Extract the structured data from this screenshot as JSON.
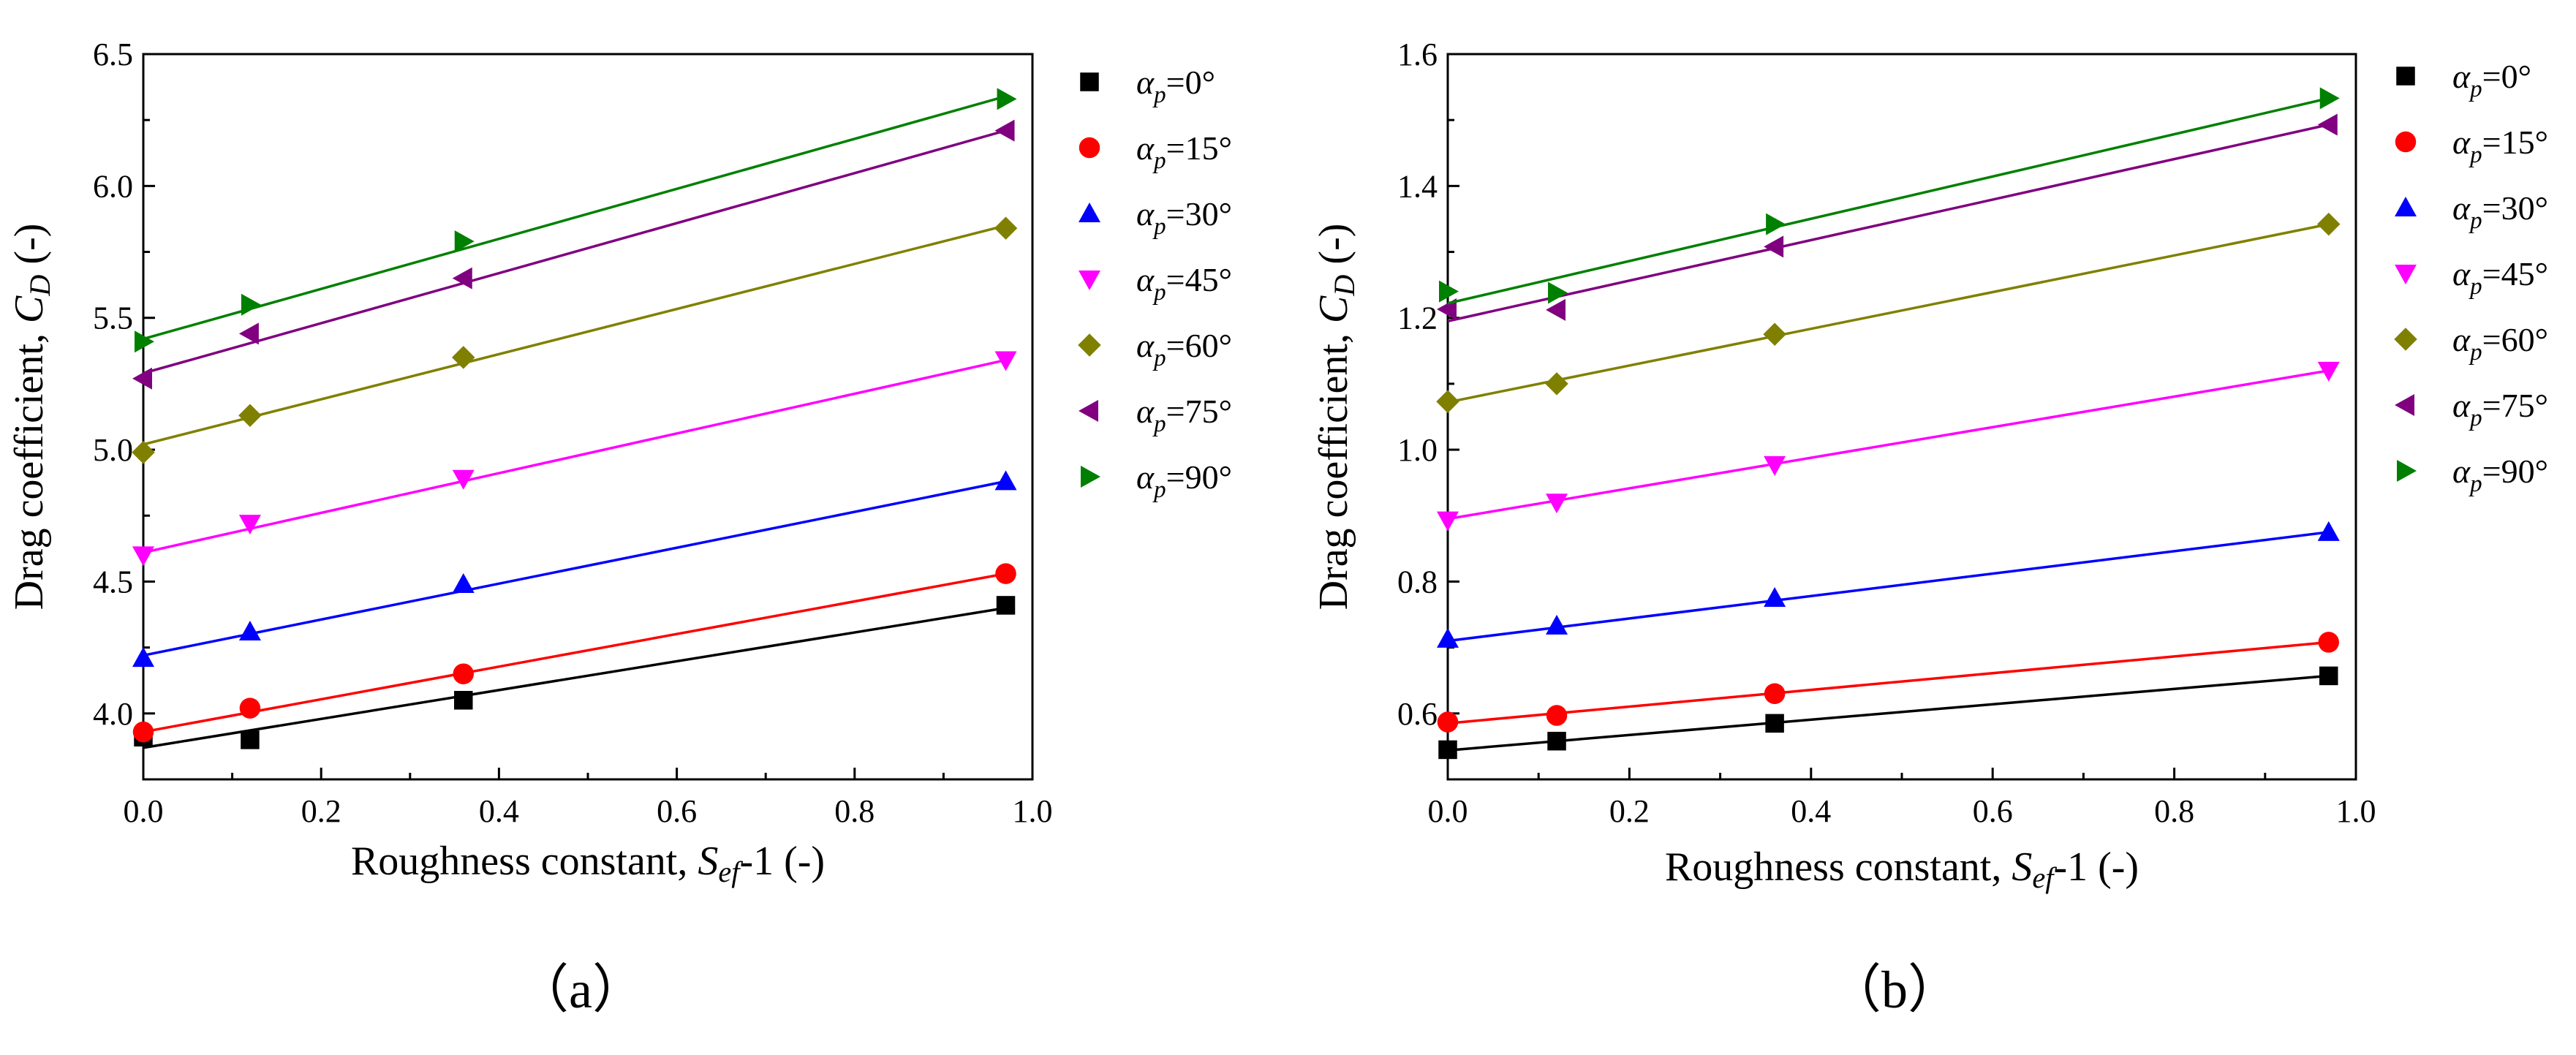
{
  "chart_data": [
    {
      "type": "scatter",
      "panel_label": "（a）",
      "xlabel_prefix": "Roughness constant, ",
      "xlabel_var": "S",
      "xlabel_sub": "ef",
      "xlabel_suffix": "-1 (-)",
      "ylabel_prefix": "Drag coefficient, ",
      "ylabel_var": "C",
      "ylabel_sub": "D",
      "ylabel_suffix": " (-)",
      "xlim": [
        0,
        1.0
      ],
      "ylim": [
        3.75,
        6.5
      ],
      "xticks": [
        0.0,
        0.2,
        0.4,
        0.6,
        0.8,
        1.0
      ],
      "xtick_labels": [
        "0.0",
        "0.2",
        "0.4",
        "0.6",
        "0.8",
        "1.0"
      ],
      "yticks": [
        4.0,
        4.5,
        5.0,
        5.5,
        6.0,
        6.5
      ],
      "ytick_labels": [
        "4.0",
        "4.5",
        "5.0",
        "5.5",
        "6.0",
        "6.5"
      ],
      "x": [
        0.0,
        0.12,
        0.36,
        0.97
      ],
      "legend_position": "right",
      "series": [
        {
          "name": "αp=0°",
          "sym": "α",
          "sub": "p",
          "val": "=0°",
          "marker": "square",
          "color": "#000000",
          "values": [
            3.91,
            3.9,
            4.05,
            4.41
          ],
          "fit": [
            3.87,
            4.4
          ]
        },
        {
          "name": "αp=15°",
          "sym": "α",
          "sub": "p",
          "val": "=15°",
          "marker": "circle",
          "color": "#ff0000",
          "values": [
            3.93,
            4.02,
            4.15,
            4.53
          ],
          "fit": [
            3.93,
            4.53
          ]
        },
        {
          "name": "αp=30°",
          "sym": "α",
          "sub": "p",
          "val": "=30°",
          "marker": "triangle-up",
          "color": "#0000ff",
          "values": [
            4.21,
            4.31,
            4.49,
            4.88
          ],
          "fit": [
            4.22,
            4.88
          ]
        },
        {
          "name": "αp=45°",
          "sym": "α",
          "sub": "p",
          "val": "=45°",
          "marker": "triangle-down",
          "color": "#ff00ff",
          "values": [
            4.6,
            4.72,
            4.89,
            5.34
          ],
          "fit": [
            4.61,
            5.34
          ]
        },
        {
          "name": "αp=60°",
          "sym": "α",
          "sub": "p",
          "val": "=60°",
          "marker": "diamond",
          "color": "#808000",
          "values": [
            4.99,
            5.13,
            5.35,
            5.84
          ],
          "fit": [
            5.02,
            5.85
          ]
        },
        {
          "name": "αp=75°",
          "sym": "α",
          "sub": "p",
          "val": "=75°",
          "marker": "triangle-left",
          "color": "#800080",
          "values": [
            5.27,
            5.44,
            5.65,
            6.21
          ],
          "fit": [
            5.29,
            6.21
          ]
        },
        {
          "name": "αp=90°",
          "sym": "α",
          "sub": "p",
          "val": "=90°",
          "marker": "triangle-right",
          "color": "#008000",
          "values": [
            5.41,
            5.55,
            5.79,
            6.33
          ],
          "fit": [
            5.42,
            6.34
          ]
        }
      ]
    },
    {
      "type": "scatter",
      "panel_label": "（b）",
      "xlabel_prefix": "Roughness constant, ",
      "xlabel_var": "S",
      "xlabel_sub": "ef",
      "xlabel_suffix": "-1 (-)",
      "ylabel_prefix": "Drag coefficient, ",
      "ylabel_var": "C",
      "ylabel_sub": "D",
      "ylabel_suffix": " (-)",
      "xlim": [
        0,
        1.0
      ],
      "ylim": [
        0.5,
        1.6
      ],
      "xticks": [
        0.0,
        0.2,
        0.4,
        0.6,
        0.8,
        1.0
      ],
      "xtick_labels": [
        "0.0",
        "0.2",
        "0.4",
        "0.6",
        "0.8",
        "1.0"
      ],
      "yticks": [
        0.6,
        0.8,
        1.0,
        1.2,
        1.4,
        1.6
      ],
      "ytick_labels": [
        "0.6",
        "0.8",
        "1.0",
        "1.2",
        "1.4",
        "1.6"
      ],
      "x": [
        0.0,
        0.12,
        0.36,
        0.97
      ],
      "legend_position": "right",
      "series": [
        {
          "name": "αp=0°",
          "sym": "α",
          "sub": "p",
          "val": "=0°",
          "marker": "square",
          "color": "#000000",
          "values": [
            0.545,
            0.558,
            0.585,
            0.657
          ],
          "fit": [
            0.544,
            0.657
          ]
        },
        {
          "name": "αp=15°",
          "sym": "α",
          "sub": "p",
          "val": "=15°",
          "marker": "circle",
          "color": "#ff0000",
          "values": [
            0.587,
            0.597,
            0.63,
            0.708
          ],
          "fit": [
            0.585,
            0.708
          ]
        },
        {
          "name": "αp=30°",
          "sym": "α",
          "sub": "p",
          "val": "=30°",
          "marker": "triangle-up",
          "color": "#0000ff",
          "values": [
            0.713,
            0.733,
            0.775,
            0.875
          ],
          "fit": [
            0.71,
            0.875
          ]
        },
        {
          "name": "αp=45°",
          "sym": "α",
          "sub": "p",
          "val": "=45°",
          "marker": "triangle-down",
          "color": "#ff00ff",
          "values": [
            0.893,
            0.92,
            0.977,
            1.12
          ],
          "fit": [
            0.895,
            1.12
          ]
        },
        {
          "name": "αp=60°",
          "sym": "α",
          "sub": "p",
          "val": "=60°",
          "marker": "diamond",
          "color": "#808000",
          "values": [
            1.073,
            1.1,
            1.175,
            1.342
          ],
          "fit": [
            1.072,
            1.342
          ]
        },
        {
          "name": "αp=75°",
          "sym": "α",
          "sub": "p",
          "val": "=75°",
          "marker": "triangle-left",
          "color": "#800080",
          "values": [
            1.213,
            1.212,
            1.308,
            1.493
          ],
          "fit": [
            1.195,
            1.493
          ]
        },
        {
          "name": "αp=90°",
          "sym": "α",
          "sub": "p",
          "val": "=90°",
          "marker": "triangle-right",
          "color": "#008000",
          "values": [
            1.24,
            1.238,
            1.342,
            1.533
          ],
          "fit": [
            1.222,
            1.533
          ]
        }
      ]
    }
  ]
}
